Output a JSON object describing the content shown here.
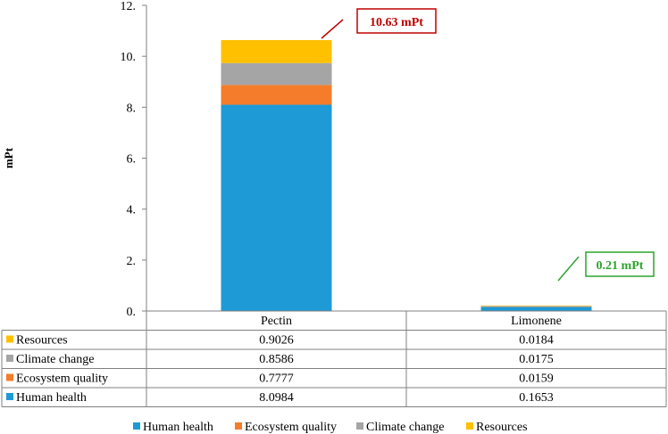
{
  "chart_data": {
    "type": "bar",
    "stacked": true,
    "ylabel": "mPt",
    "ylim": [
      0,
      12
    ],
    "yticks": [
      0,
      2,
      4,
      6,
      8,
      10,
      12
    ],
    "ytick_labels": [
      "0.",
      "2.",
      "4.",
      "6.",
      "8.",
      "10.",
      "12."
    ],
    "categories": [
      "Pectin",
      "Limonene"
    ],
    "series": [
      {
        "name": "Human health",
        "values": [
          8.0984,
          0.1653
        ],
        "labels": [
          "8.0984",
          "0.1653"
        ],
        "color": "#1E9AD6"
      },
      {
        "name": "Ecosystem quality",
        "values": [
          0.7777,
          0.0159
        ],
        "labels": [
          "0.7777",
          "0.0159"
        ],
        "color": "#F47C2A"
      },
      {
        "name": "Climate change",
        "values": [
          0.8586,
          0.0175
        ],
        "labels": [
          "0.8586",
          "0.0175"
        ],
        "color": "#A5A5A5"
      },
      {
        "name": "Resources",
        "values": [
          0.9026,
          0.0184
        ],
        "labels": [
          "0.9026",
          "0.0184"
        ],
        "color": "#FFC000"
      }
    ],
    "table_row_order": [
      "Resources",
      "Climate change",
      "Ecosystem quality",
      "Human health"
    ],
    "annotations": [
      {
        "category": "Pectin",
        "text": "10.63 mPt",
        "color": "#C00000"
      },
      {
        "category": "Limonene",
        "text": "0.21 mPt",
        "color": "#2EA32E"
      }
    ],
    "legend_position": "bottom",
    "grid": false
  }
}
